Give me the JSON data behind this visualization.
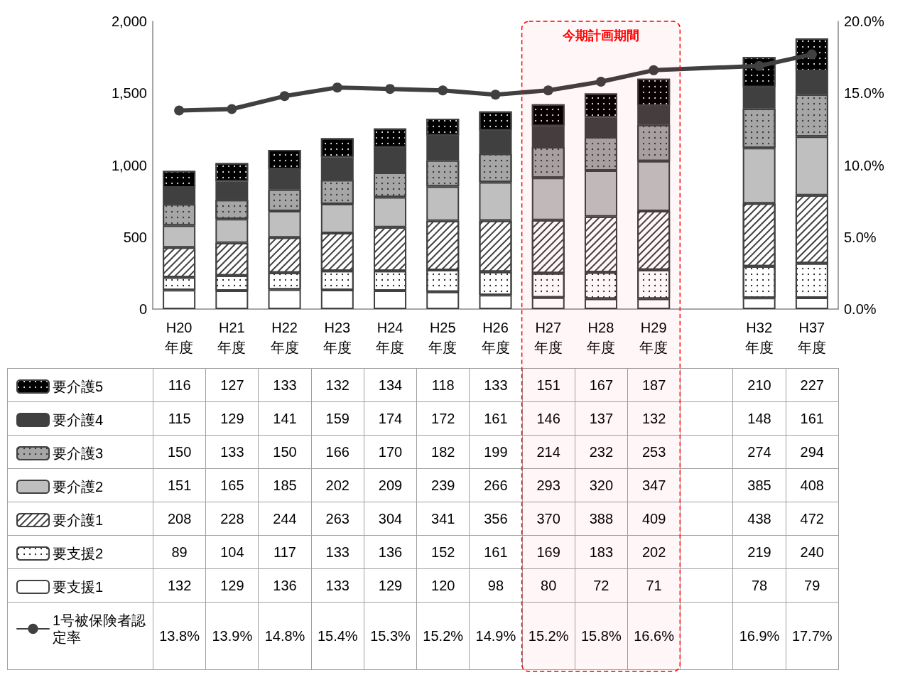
{
  "chart_data": {
    "type": "bar",
    "stacked": true,
    "categories": [
      "H20\n年度",
      "H21\n年度",
      "H22\n年度",
      "H23\n年度",
      "H24\n年度",
      "H25\n年度",
      "H26\n年度",
      "H27\n年度",
      "H28\n年度",
      "H29\n年度",
      null,
      "H32\n年度",
      "H37\n年度"
    ],
    "series": [
      {
        "name": "要支援1",
        "color": "#ffffff",
        "values": [
          132,
          129,
          136,
          133,
          129,
          120,
          98,
          80,
          72,
          71,
          null,
          78,
          79
        ]
      },
      {
        "name": "要支援2",
        "color": "#ffffff",
        "values": [
          89,
          104,
          117,
          133,
          136,
          152,
          161,
          169,
          183,
          202,
          null,
          219,
          240
        ]
      },
      {
        "name": "要介護1",
        "color": "#ffffff",
        "values": [
          208,
          228,
          244,
          263,
          304,
          341,
          356,
          370,
          388,
          409,
          null,
          438,
          472
        ]
      },
      {
        "name": "要介護2",
        "color": "#bfbfbf",
        "values": [
          151,
          165,
          185,
          202,
          209,
          239,
          266,
          293,
          320,
          347,
          null,
          385,
          408
        ]
      },
      {
        "name": "要介護3",
        "color": "#a6a6a6",
        "values": [
          150,
          133,
          150,
          166,
          170,
          182,
          199,
          214,
          232,
          253,
          null,
          274,
          294
        ]
      },
      {
        "name": "要介護4",
        "color": "#404040",
        "values": [
          115,
          129,
          141,
          159,
          174,
          172,
          161,
          146,
          137,
          132,
          null,
          148,
          161
        ]
      },
      {
        "name": "要介護5",
        "color": "#000000",
        "values": [
          116,
          127,
          133,
          132,
          134,
          118,
          133,
          151,
          167,
          187,
          null,
          210,
          227
        ]
      },
      {
        "name": "1号被保険者認定率",
        "type": "line",
        "axis": "y2",
        "color": "#404040",
        "values": [
          13.8,
          13.9,
          14.8,
          15.4,
          15.3,
          15.2,
          14.9,
          15.2,
          15.8,
          16.6,
          null,
          16.9,
          17.7
        ],
        "value_labels": [
          "13.8%",
          "13.9%",
          "14.8%",
          "15.4%",
          "15.3%",
          "15.2%",
          "14.9%",
          "15.2%",
          "15.8%",
          "16.6%",
          null,
          "16.9%",
          "17.7%"
        ]
      }
    ],
    "ylim": [
      0,
      2000
    ],
    "yticks": [
      0,
      500,
      {
        "value": 1000,
        "label": "1,000"
      },
      {
        "value": 1500,
        "label": "1,500"
      },
      {
        "value": 2000,
        "label": "2,000"
      }
    ],
    "y2lim": [
      0,
      20
    ],
    "y2ticks": [
      {
        "value": 0,
        "label": "0.0%"
      },
      {
        "value": 5,
        "label": "5.0%"
      },
      {
        "value": 10,
        "label": "10.0%"
      },
      {
        "value": 15,
        "label": "15.0%"
      },
      {
        "value": 20,
        "label": "20.0%"
      }
    ],
    "bands": [
      {
        "axis": "x",
        "from": "H27\n年度",
        "to": "H29\n年度",
        "label": "今期計画期間",
        "color": "#ff0000"
      }
    ],
    "data_labels": true,
    "grid": false,
    "legend": "bottom left",
    "marker": "circle"
  }
}
